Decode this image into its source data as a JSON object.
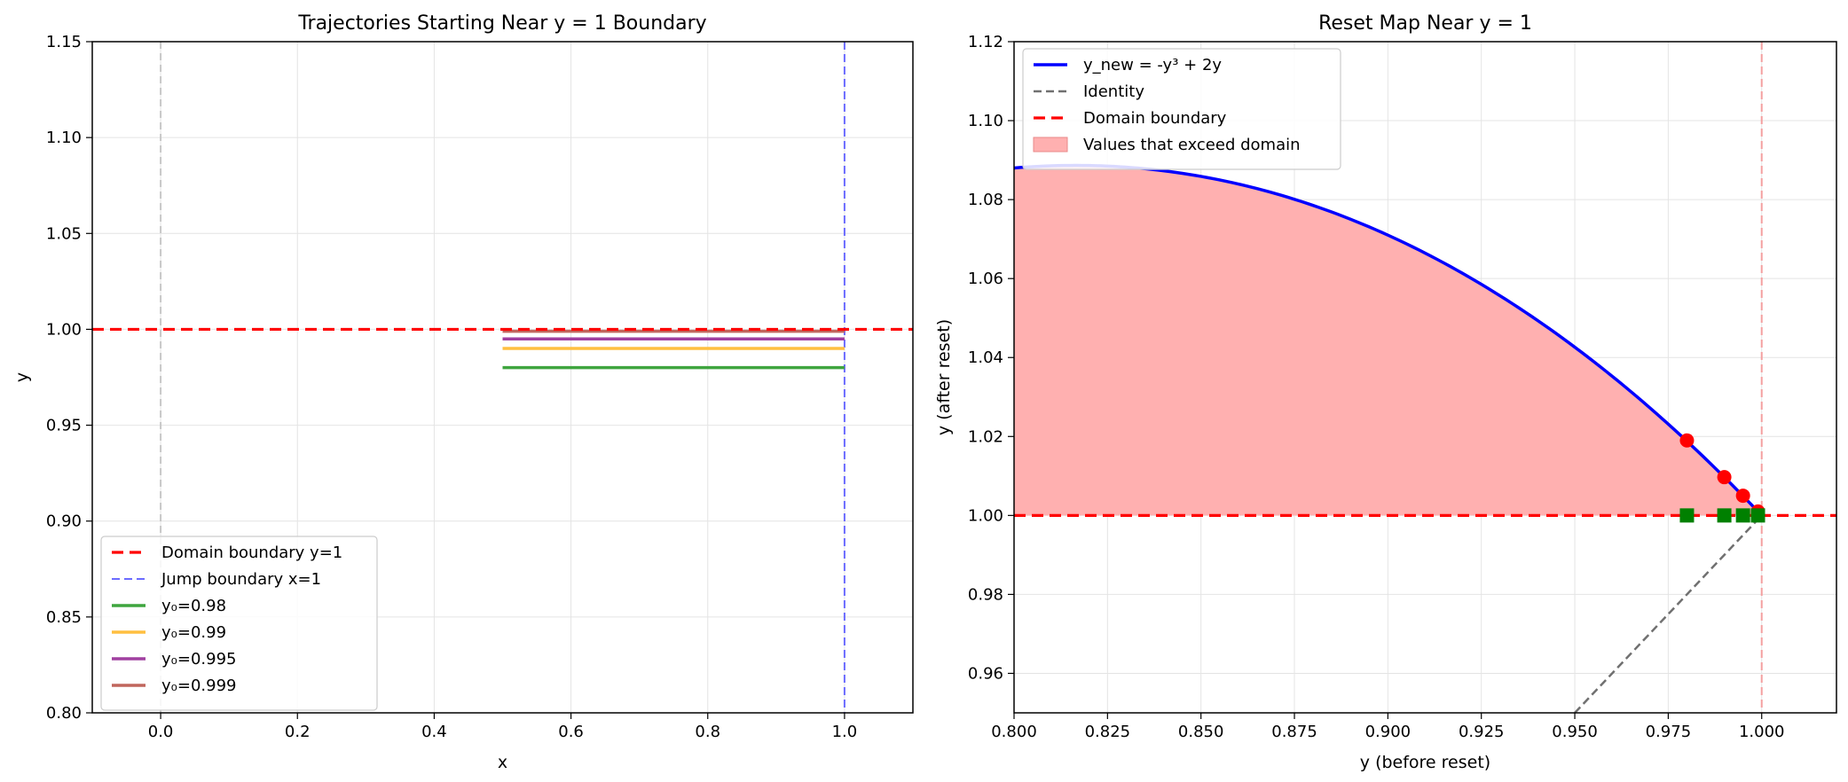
{
  "chart_data": [
    {
      "type": "line",
      "title": "Trajectories Starting Near y = 1 Boundary",
      "xlabel": "x",
      "ylabel": "y",
      "xlim": [
        -0.1,
        1.1
      ],
      "ylim": [
        0.8,
        1.15
      ],
      "xticks": [
        0.0,
        0.2,
        0.4,
        0.6,
        0.8,
        1.0
      ],
      "xtick_labels": [
        "0.0",
        "0.2",
        "0.4",
        "0.6",
        "0.8",
        "1.0"
      ],
      "yticks": [
        0.8,
        0.85,
        0.9,
        0.95,
        1.0,
        1.05,
        1.1,
        1.15
      ],
      "ytick_labels": [
        "0.80",
        "0.85",
        "0.90",
        "0.95",
        "1.00",
        "1.05",
        "1.10",
        "1.15"
      ],
      "grid": true,
      "legend_position": "lower-left",
      "reference_lines": [
        {
          "orientation": "horizontal",
          "value": 1.0,
          "color": "#ff0000",
          "style": "dashed",
          "label": "Domain boundary y=1"
        },
        {
          "orientation": "vertical",
          "value": 1.0,
          "color": "#6b6bff",
          "style": "dashed",
          "label": "Jump boundary x=1"
        },
        {
          "orientation": "vertical",
          "value": 0.0,
          "color": "#c8c8c8",
          "style": "dashed",
          "label": ""
        }
      ],
      "series": [
        {
          "name": "y₀=0.98",
          "color": "#3fa53f",
          "x": [
            0.5,
            1.0
          ],
          "y": [
            0.98,
            0.98
          ]
        },
        {
          "name": "y₀=0.99",
          "color": "#ffbf40",
          "x": [
            0.5,
            1.0
          ],
          "y": [
            0.99,
            0.99
          ]
        },
        {
          "name": "y₀=0.995",
          "color": "#a040a0",
          "x": [
            0.5,
            1.0
          ],
          "y": [
            0.995,
            0.995
          ]
        },
        {
          "name": "y₀=0.999",
          "color": "#c0665d",
          "x": [
            0.5,
            1.0
          ],
          "y": [
            0.999,
            0.999
          ]
        }
      ]
    },
    {
      "type": "line",
      "title": "Reset Map Near y = 1",
      "xlabel": "y (before reset)",
      "ylabel": "y (after reset)",
      "xlim": [
        0.8,
        1.02
      ],
      "ylim": [
        0.95,
        1.12
      ],
      "xticks": [
        0.8,
        0.825,
        0.85,
        0.875,
        0.9,
        0.925,
        0.95,
        0.975,
        1.0
      ],
      "xtick_labels": [
        "0.800",
        "0.825",
        "0.850",
        "0.875",
        "0.900",
        "0.925",
        "0.950",
        "0.975",
        "1.000"
      ],
      "yticks": [
        0.96,
        0.98,
        1.0,
        1.02,
        1.04,
        1.06,
        1.08,
        1.1,
        1.12
      ],
      "ytick_labels": [
        "0.96",
        "0.98",
        "1.00",
        "1.02",
        "1.04",
        "1.06",
        "1.08",
        "1.10",
        "1.12"
      ],
      "grid": true,
      "legend_position": "upper-left",
      "curve": {
        "name": "y_new = -y³ + 2y",
        "color": "#0000ff",
        "x_range": [
          0.8,
          1.0
        ]
      },
      "identity": {
        "name": "Identity",
        "color": "#707070"
      },
      "domain_boundary": {
        "name": "Domain boundary",
        "value": 1.0,
        "color": "#ff0000"
      },
      "fill": {
        "name": "Values that exceed domain",
        "color": "#ffb0b0"
      },
      "vertical_reference": {
        "value": 1.0,
        "color": "#f4a0a0"
      },
      "red_points": [
        {
          "x": 0.98,
          "y": 1.019
        },
        {
          "x": 0.99,
          "y": 1.0097
        },
        {
          "x": 0.995,
          "y": 1.005
        },
        {
          "x": 0.999,
          "y": 1.001
        }
      ],
      "green_squares": [
        {
          "x": 0.98,
          "y": 1.0
        },
        {
          "x": 0.99,
          "y": 1.0
        },
        {
          "x": 0.995,
          "y": 1.0
        },
        {
          "x": 0.999,
          "y": 1.0
        }
      ]
    }
  ]
}
